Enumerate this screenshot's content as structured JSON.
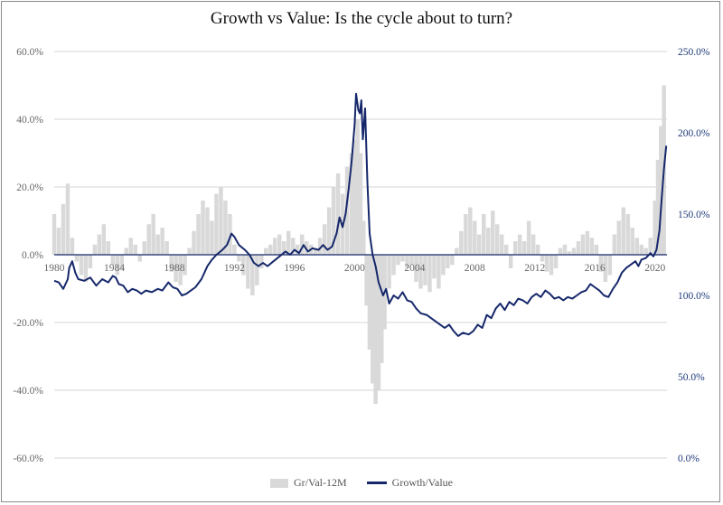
{
  "chart_data": {
    "type": "bar+line",
    "title": "Growth vs Value: Is the cycle about to turn?",
    "left_axis": {
      "min": -60,
      "max": 60,
      "ticks": [
        "-60.0%",
        "-40.0%",
        "-20.0%",
        "0.0%",
        "20.0%",
        "40.0%",
        "60.0%"
      ],
      "tick_values": [
        -60,
        -40,
        -20,
        0,
        20,
        40,
        60
      ]
    },
    "right_axis": {
      "min": 0,
      "max": 250,
      "ticks": [
        "0.0%",
        "50.0%",
        "100.0%",
        "150.0%",
        "200.0%",
        "250.0%"
      ],
      "tick_values": [
        0,
        50,
        100,
        150,
        200,
        250
      ]
    },
    "x_axis": {
      "min": 1980,
      "max": 2020.8,
      "ticks": [
        "1980",
        "1984",
        "1988",
        "1992",
        "1996",
        "2000",
        "2004",
        "2008",
        "2012",
        "2016",
        "2020"
      ],
      "tick_values": [
        1980,
        1984,
        1988,
        1992,
        1996,
        2000,
        2004,
        2008,
        2012,
        2016,
        2020
      ]
    },
    "series": [
      {
        "name": "Gr/Val-12M",
        "kind": "bar",
        "axis": "left",
        "color": "#d9d9d9",
        "points": [
          [
            1980.0,
            12
          ],
          [
            1980.3,
            8
          ],
          [
            1980.6,
            15
          ],
          [
            1980.9,
            21
          ],
          [
            1981.2,
            5
          ],
          [
            1981.5,
            -2
          ],
          [
            1981.8,
            -6
          ],
          [
            1982.1,
            -8
          ],
          [
            1982.4,
            -4
          ],
          [
            1982.7,
            3
          ],
          [
            1983.0,
            6
          ],
          [
            1983.3,
            9
          ],
          [
            1983.6,
            4
          ],
          [
            1983.9,
            -3
          ],
          [
            1984.2,
            -6
          ],
          [
            1984.5,
            -4
          ],
          [
            1984.8,
            2
          ],
          [
            1985.1,
            5
          ],
          [
            1985.4,
            3
          ],
          [
            1985.7,
            -2
          ],
          [
            1986.0,
            4
          ],
          [
            1986.3,
            9
          ],
          [
            1986.6,
            12
          ],
          [
            1986.9,
            6
          ],
          [
            1987.2,
            8
          ],
          [
            1987.5,
            4
          ],
          [
            1987.8,
            -5
          ],
          [
            1988.1,
            -8
          ],
          [
            1988.4,
            -9
          ],
          [
            1988.7,
            -6
          ],
          [
            1989.0,
            2
          ],
          [
            1989.3,
            7
          ],
          [
            1989.6,
            12
          ],
          [
            1989.9,
            16
          ],
          [
            1990.2,
            14
          ],
          [
            1990.5,
            10
          ],
          [
            1990.8,
            18
          ],
          [
            1991.1,
            20
          ],
          [
            1991.4,
            16
          ],
          [
            1991.7,
            12
          ],
          [
            1992.0,
            3
          ],
          [
            1992.3,
            -2
          ],
          [
            1992.6,
            -6
          ],
          [
            1992.9,
            -10
          ],
          [
            1993.2,
            -12
          ],
          [
            1993.5,
            -9
          ],
          [
            1993.8,
            -4
          ],
          [
            1994.1,
            2
          ],
          [
            1994.4,
            3
          ],
          [
            1994.7,
            5
          ],
          [
            1995.0,
            6
          ],
          [
            1995.3,
            4
          ],
          [
            1995.6,
            7
          ],
          [
            1995.9,
            5
          ],
          [
            1996.2,
            3
          ],
          [
            1996.5,
            6
          ],
          [
            1996.8,
            4
          ],
          [
            1997.1,
            3
          ],
          [
            1997.4,
            2
          ],
          [
            1997.7,
            5
          ],
          [
            1998.0,
            9
          ],
          [
            1998.3,
            14
          ],
          [
            1998.6,
            20
          ],
          [
            1998.9,
            24
          ],
          [
            1999.2,
            18
          ],
          [
            1999.5,
            26
          ],
          [
            1999.8,
            30
          ],
          [
            2000.0,
            34
          ],
          [
            2000.2,
            40
          ],
          [
            2000.4,
            30
          ],
          [
            2000.6,
            10
          ],
          [
            2000.8,
            -15
          ],
          [
            2001.0,
            -28
          ],
          [
            2001.2,
            -38
          ],
          [
            2001.4,
            -44
          ],
          [
            2001.6,
            -40
          ],
          [
            2001.8,
            -32
          ],
          [
            2002.0,
            -22
          ],
          [
            2002.3,
            -10
          ],
          [
            2002.6,
            -6
          ],
          [
            2002.9,
            -3
          ],
          [
            2003.2,
            -2
          ],
          [
            2003.5,
            -4
          ],
          [
            2003.8,
            -3
          ],
          [
            2004.1,
            -8
          ],
          [
            2004.4,
            -10
          ],
          [
            2004.7,
            -9
          ],
          [
            2005.0,
            -11
          ],
          [
            2005.3,
            -7
          ],
          [
            2005.6,
            -10
          ],
          [
            2005.9,
            -6
          ],
          [
            2006.2,
            -4
          ],
          [
            2006.5,
            -3
          ],
          [
            2006.8,
            2
          ],
          [
            2007.1,
            7
          ],
          [
            2007.4,
            12
          ],
          [
            2007.7,
            14
          ],
          [
            2008.0,
            10
          ],
          [
            2008.3,
            6
          ],
          [
            2008.6,
            12
          ],
          [
            2008.9,
            8
          ],
          [
            2009.2,
            13
          ],
          [
            2009.5,
            9
          ],
          [
            2009.8,
            6
          ],
          [
            2010.1,
            3
          ],
          [
            2010.4,
            -4
          ],
          [
            2010.7,
            4
          ],
          [
            2011.0,
            6
          ],
          [
            2011.3,
            4
          ],
          [
            2011.6,
            10
          ],
          [
            2011.9,
            6
          ],
          [
            2012.2,
            3
          ],
          [
            2012.5,
            -2
          ],
          [
            2012.8,
            -5
          ],
          [
            2013.1,
            -6
          ],
          [
            2013.4,
            -4
          ],
          [
            2013.7,
            2
          ],
          [
            2014.0,
            3
          ],
          [
            2014.3,
            1
          ],
          [
            2014.6,
            2
          ],
          [
            2014.9,
            4
          ],
          [
            2015.2,
            6
          ],
          [
            2015.5,
            7
          ],
          [
            2015.8,
            5
          ],
          [
            2016.1,
            3
          ],
          [
            2016.4,
            -5
          ],
          [
            2016.7,
            -8
          ],
          [
            2017.0,
            -6
          ],
          [
            2017.3,
            6
          ],
          [
            2017.6,
            10
          ],
          [
            2017.9,
            14
          ],
          [
            2018.2,
            12
          ],
          [
            2018.5,
            8
          ],
          [
            2018.8,
            5
          ],
          [
            2019.1,
            3
          ],
          [
            2019.4,
            2
          ],
          [
            2019.7,
            5
          ],
          [
            2020.0,
            16
          ],
          [
            2020.2,
            28
          ],
          [
            2020.4,
            38
          ],
          [
            2020.6,
            50
          ]
        ]
      },
      {
        "name": "Growth/Value",
        "kind": "line",
        "axis": "right",
        "color": "#16286b",
        "points": [
          [
            1980.0,
            109
          ],
          [
            1980.3,
            108
          ],
          [
            1980.6,
            104
          ],
          [
            1980.9,
            110
          ],
          [
            1981.0,
            117
          ],
          [
            1981.2,
            121
          ],
          [
            1981.4,
            114
          ],
          [
            1981.6,
            110
          ],
          [
            1982.0,
            109
          ],
          [
            1982.4,
            111
          ],
          [
            1982.8,
            106
          ],
          [
            1983.2,
            110
          ],
          [
            1983.6,
            108
          ],
          [
            1983.9,
            112
          ],
          [
            1984.1,
            111
          ],
          [
            1984.3,
            107
          ],
          [
            1984.6,
            106
          ],
          [
            1984.9,
            102
          ],
          [
            1985.2,
            104
          ],
          [
            1985.5,
            103
          ],
          [
            1985.8,
            101
          ],
          [
            1986.1,
            103
          ],
          [
            1986.5,
            102
          ],
          [
            1986.9,
            104
          ],
          [
            1987.2,
            103
          ],
          [
            1987.6,
            108
          ],
          [
            1987.9,
            105
          ],
          [
            1988.2,
            104
          ],
          [
            1988.5,
            100
          ],
          [
            1988.8,
            101
          ],
          [
            1989.1,
            103
          ],
          [
            1989.4,
            105
          ],
          [
            1989.8,
            110
          ],
          [
            1990.2,
            118
          ],
          [
            1990.5,
            122
          ],
          [
            1990.8,
            125
          ],
          [
            1991.2,
            128
          ],
          [
            1991.5,
            131
          ],
          [
            1991.8,
            138
          ],
          [
            1992.0,
            136
          ],
          [
            1992.3,
            131
          ],
          [
            1992.7,
            128
          ],
          [
            1993.0,
            125
          ],
          [
            1993.3,
            120
          ],
          [
            1993.6,
            118
          ],
          [
            1993.9,
            120
          ],
          [
            1994.2,
            118
          ],
          [
            1994.6,
            121
          ],
          [
            1995.0,
            124
          ],
          [
            1995.4,
            127
          ],
          [
            1995.7,
            125
          ],
          [
            1996.0,
            128
          ],
          [
            1996.3,
            126
          ],
          [
            1996.6,
            131
          ],
          [
            1996.9,
            127
          ],
          [
            1997.2,
            129
          ],
          [
            1997.6,
            128
          ],
          [
            1997.9,
            131
          ],
          [
            1998.2,
            128
          ],
          [
            1998.5,
            130
          ],
          [
            1998.8,
            138
          ],
          [
            1999.0,
            148
          ],
          [
            1999.2,
            142
          ],
          [
            1999.4,
            150
          ],
          [
            1999.6,
            165
          ],
          [
            1999.8,
            182
          ],
          [
            2000.0,
            205
          ],
          [
            2000.1,
            224
          ],
          [
            2000.25,
            214
          ],
          [
            2000.35,
            212
          ],
          [
            2000.45,
            220
          ],
          [
            2000.55,
            196
          ],
          [
            2000.7,
            215
          ],
          [
            2000.85,
            170
          ],
          [
            2001.0,
            138
          ],
          [
            2001.2,
            125
          ],
          [
            2001.4,
            118
          ],
          [
            2001.6,
            108
          ],
          [
            2001.9,
            100
          ],
          [
            2002.1,
            104
          ],
          [
            2002.3,
            95
          ],
          [
            2002.6,
            100
          ],
          [
            2002.9,
            98
          ],
          [
            2003.2,
            102
          ],
          [
            2003.5,
            97
          ],
          [
            2003.8,
            96
          ],
          [
            2004.1,
            92
          ],
          [
            2004.4,
            89
          ],
          [
            2004.8,
            88
          ],
          [
            2005.1,
            86
          ],
          [
            2005.4,
            84
          ],
          [
            2005.7,
            82
          ],
          [
            2006.0,
            80
          ],
          [
            2006.3,
            82
          ],
          [
            2006.6,
            78
          ],
          [
            2006.9,
            75
          ],
          [
            2007.2,
            77
          ],
          [
            2007.6,
            76
          ],
          [
            2007.9,
            78
          ],
          [
            2008.2,
            82
          ],
          [
            2008.5,
            80
          ],
          [
            2008.8,
            88
          ],
          [
            2009.1,
            86
          ],
          [
            2009.4,
            92
          ],
          [
            2009.7,
            95
          ],
          [
            2010.0,
            91
          ],
          [
            2010.3,
            96
          ],
          [
            2010.6,
            94
          ],
          [
            2010.9,
            98
          ],
          [
            2011.2,
            97
          ],
          [
            2011.5,
            95
          ],
          [
            2011.8,
            99
          ],
          [
            2012.1,
            101
          ],
          [
            2012.4,
            99
          ],
          [
            2012.7,
            103
          ],
          [
            2013.0,
            101
          ],
          [
            2013.3,
            98
          ],
          [
            2013.6,
            99
          ],
          [
            2013.9,
            97
          ],
          [
            2014.2,
            99
          ],
          [
            2014.5,
            98
          ],
          [
            2014.8,
            100
          ],
          [
            2015.1,
            102
          ],
          [
            2015.4,
            103
          ],
          [
            2015.7,
            107
          ],
          [
            2016.0,
            105
          ],
          [
            2016.3,
            103
          ],
          [
            2016.6,
            100
          ],
          [
            2016.9,
            99
          ],
          [
            2017.2,
            104
          ],
          [
            2017.5,
            108
          ],
          [
            2017.8,
            114
          ],
          [
            2018.1,
            117
          ],
          [
            2018.4,
            119
          ],
          [
            2018.7,
            121
          ],
          [
            2018.9,
            118
          ],
          [
            2019.1,
            122
          ],
          [
            2019.4,
            123
          ],
          [
            2019.7,
            126
          ],
          [
            2019.9,
            124
          ],
          [
            2020.1,
            128
          ],
          [
            2020.3,
            140
          ],
          [
            2020.45,
            160
          ],
          [
            2020.6,
            178
          ],
          [
            2020.75,
            192
          ]
        ]
      }
    ],
    "legend": [
      "Gr/Val-12M",
      "Growth/Value"
    ],
    "legend_position": "bottom"
  }
}
